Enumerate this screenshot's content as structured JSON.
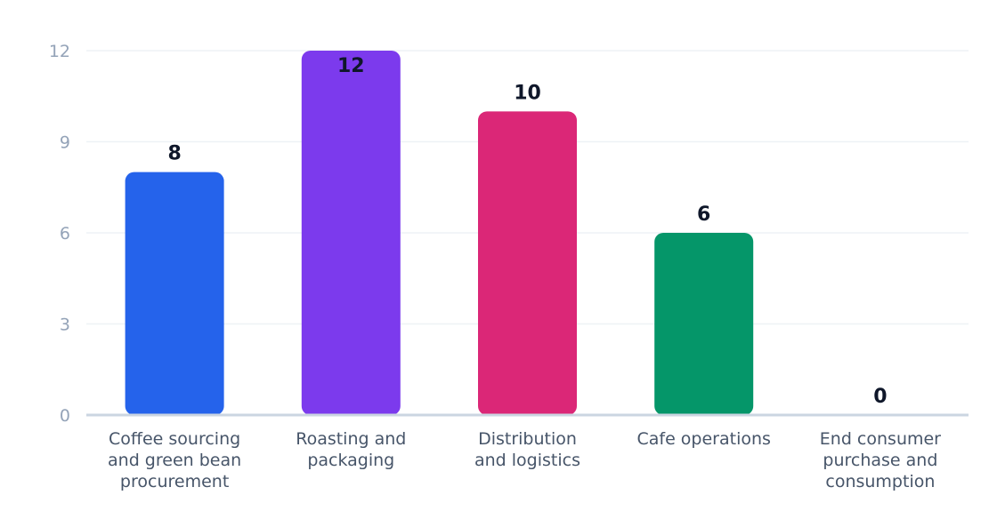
{
  "chart_data": {
    "type": "bar",
    "title": "",
    "xlabel": "",
    "ylabel": "",
    "categories": [
      "Coffee sourcing and green bean procurement",
      "Roasting and packaging",
      "Distribution and logistics",
      "Cafe operations",
      "End consumer purchase and consumption"
    ],
    "category_lines": [
      [
        "Coffee sourcing",
        "and green bean",
        "procurement"
      ],
      [
        "Roasting and",
        "packaging"
      ],
      [
        "Distribution",
        "and logistics"
      ],
      [
        "Cafe operations"
      ],
      [
        "End consumer",
        "purchase and",
        "consumption"
      ]
    ],
    "values": [
      8,
      12,
      10,
      6,
      0
    ],
    "data_labels": [
      "8",
      "12",
      "10",
      "6",
      "0"
    ],
    "colors": [
      "#2563eb",
      "#7c3aed",
      "#db2777",
      "#059669",
      "#f59e0b"
    ],
    "ylim": [
      0,
      12
    ],
    "yticks": [
      0,
      3,
      6,
      9,
      12
    ],
    "grid": true,
    "legend": "none"
  }
}
